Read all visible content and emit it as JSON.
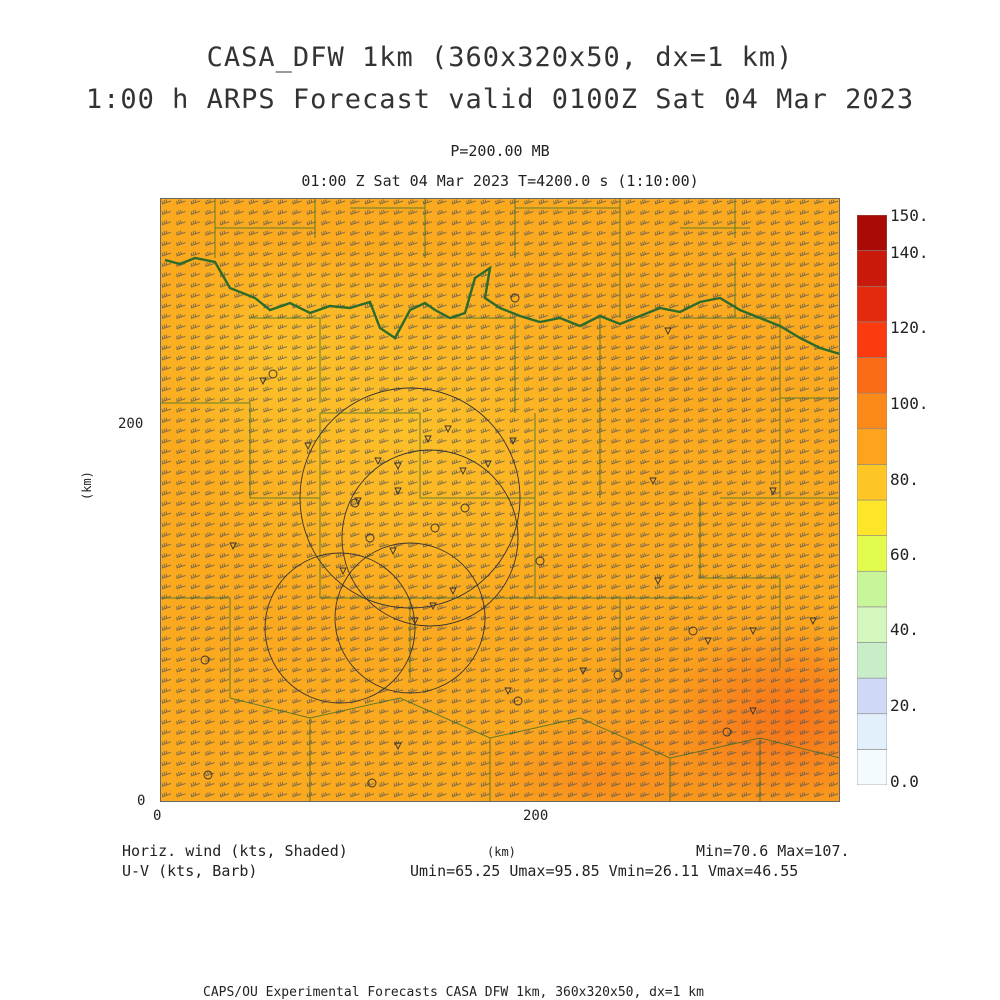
{
  "title": {
    "line1": "CASA_DFW 1km (360x320x50, dx=1 km)",
    "line2": "1:00 h ARPS Forecast valid 0100Z Sat 04 Mar 2023"
  },
  "level": "P=200.00 MB",
  "time_line": "01:00 Z Sat 04 Mar 2023   T=4200.0 s (1:10:00)",
  "axes": {
    "y_ticks": [
      "200",
      "0"
    ],
    "y_unit": "(km)",
    "x_ticks": [
      "0",
      "200"
    ],
    "x_unit": "(km)"
  },
  "labels": {
    "shaded": "Horiz. wind (kts, Shaded)",
    "barb": "U-V (kts, Barb)",
    "minmax": "Min=70.6  Max=107.",
    "uv_stats": "Umin=65.25 Umax=95.85 Vmin=26.11 Vmax=46.55"
  },
  "colorbar": {
    "labels": [
      "150.",
      "140.",
      "120.",
      "100.",
      "80.",
      "60.",
      "40.",
      "20.",
      "0.0"
    ],
    "colors": [
      "#f4fbff",
      "#e2f0fb",
      "#cfd8f6",
      "#c9ecc9",
      "#d4f7bd",
      "#c8f59a",
      "#e3fb4d",
      "#fde52a",
      "#fdc625",
      "#fda41c",
      "#fb8a1a",
      "#fb6a14",
      "#fb3a10",
      "#e42a0c",
      "#c8190a",
      "#aa0a06"
    ]
  },
  "field": {
    "base_color": "#fba91e",
    "light_color": "#fcc22a",
    "dark_color": "#f6731a",
    "boundary_color": "#2d6b2d",
    "barb_color": "#555555"
  },
  "footer": "CAPS/OU Experimental Forecasts  CASA DFW 1km, 360x320x50, dx=1 km"
}
